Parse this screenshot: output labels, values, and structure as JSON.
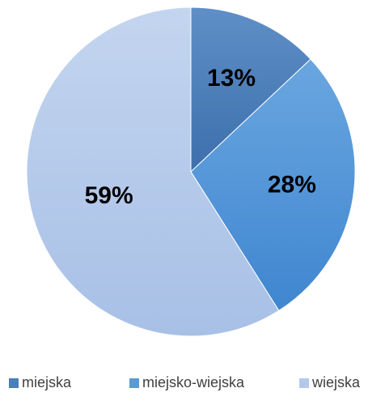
{
  "chart_data": {
    "type": "pie",
    "title": "",
    "categories": [
      "miejska",
      "miejsko-wiejska",
      "wiejska"
    ],
    "values": [
      13,
      28,
      59
    ],
    "labels": [
      "13%",
      "28%",
      "59%"
    ],
    "colors": [
      "#4a7ebb",
      "#5b9bd5",
      "#b3c9ea"
    ],
    "legend_position": "bottom"
  }
}
